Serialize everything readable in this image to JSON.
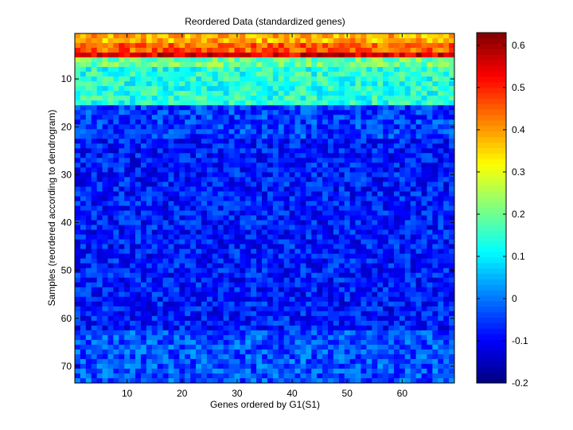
{
  "chart_data": {
    "type": "heatmap",
    "title": "Reordered Data (standardized genes)",
    "xlabel": "Genes ordered by G1(S1)",
    "ylabel": "Samples (reordered according to dendrogram)",
    "x_range": [
      0.5,
      69.5
    ],
    "y_range": [
      0.5,
      73.5
    ],
    "y_direction": "reversed",
    "n_cols": 69,
    "n_rows": 73,
    "xticks": [
      10,
      20,
      30,
      40,
      50,
      60
    ],
    "yticks": [
      10,
      20,
      30,
      40,
      50,
      60,
      70
    ],
    "colormap": "jet",
    "colorbar": {
      "range": [
        -0.2,
        0.63
      ],
      "ticks": [
        -0.2,
        -0.1,
        0,
        0.1,
        0.2,
        0.3,
        0.4,
        0.5,
        0.6
      ],
      "tick_labels": [
        "-0.2",
        "-0.1",
        "0",
        "0.1",
        "0.2",
        "0.3",
        "0.4",
        "0.5",
        "0.6"
      ]
    },
    "row_profile": [
      {
        "rows": [
          1,
          2
        ],
        "mean": 0.38
      },
      {
        "rows": [
          3,
          4
        ],
        "mean": 0.45
      },
      {
        "rows": [
          5,
          5
        ],
        "mean": 0.55
      },
      {
        "rows": [
          6,
          7
        ],
        "mean": 0.2
      },
      {
        "rows": [
          8,
          15
        ],
        "mean": 0.14
      },
      {
        "rows": [
          16,
          22
        ],
        "mean": -0.05
      },
      {
        "rows": [
          23,
          62
        ],
        "mean": -0.08
      },
      {
        "rows": [
          63,
          73
        ],
        "mean": -0.03
      }
    ]
  }
}
